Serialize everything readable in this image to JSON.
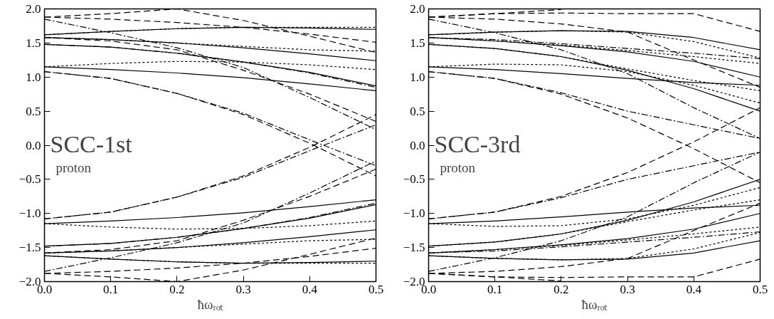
{
  "chart_data": [
    {
      "type": "line",
      "xlabel": "ħωᵣₒₜ",
      "annotations": [
        "SCC-1st",
        "proton"
      ],
      "xlim": [
        0,
        0.5
      ],
      "ylim": [
        -2,
        2
      ],
      "grid": false,
      "color": "#000000",
      "xticks": [
        {
          "value": 0,
          "label": "0.0"
        },
        {
          "value": 0.1,
          "label": "0.1"
        },
        {
          "value": 0.2,
          "label": "0.2"
        },
        {
          "value": 0.3,
          "label": "0.3"
        },
        {
          "value": 0.4,
          "label": "0.4"
        },
        {
          "value": 0.5,
          "label": "0.5"
        }
      ],
      "yticks": [
        {
          "value": -2,
          "label": "−2.0"
        },
        {
          "value": -1.5,
          "label": "−1.5"
        },
        {
          "value": -1,
          "label": "−1.0"
        },
        {
          "value": -0.5,
          "label": "−0.5"
        },
        {
          "value": 0,
          "label": "0.0"
        },
        {
          "value": 0.5,
          "label": "0.5"
        },
        {
          "value": 1,
          "label": "1.0"
        },
        {
          "value": 1.5,
          "label": "1.5"
        },
        {
          "value": 2,
          "label": "2.0"
        }
      ],
      "x": [
        0,
        0.1,
        0.2,
        0.3,
        0.4,
        0.5
      ],
      "series": [
        {
          "line_style": "solid",
          "values": [
            1.62,
            1.67,
            1.71,
            1.73,
            1.72,
            1.7
          ]
        },
        {
          "line_style": "dotted",
          "values": [
            1.62,
            1.67,
            1.71,
            1.73,
            1.73,
            1.73
          ]
        },
        {
          "line_style": "dashed",
          "values": [
            1.88,
            1.93,
            2.0,
            1.83,
            1.6,
            1.36
          ]
        },
        {
          "line_style": "dashed",
          "values": [
            1.88,
            1.85,
            1.8,
            1.73,
            1.63,
            1.51
          ]
        },
        {
          "line_style": "dashdot",
          "values": [
            1.85,
            1.65,
            1.43,
            1.14,
            0.7,
            0.23
          ]
        },
        {
          "line_style": "dashed",
          "values": [
            1.58,
            1.53,
            1.4,
            1.1,
            0.75,
            0.35
          ]
        },
        {
          "line_style": "solid",
          "values": [
            1.58,
            1.55,
            1.5,
            1.43,
            1.34,
            1.24
          ]
        },
        {
          "line_style": "dotted",
          "values": [
            1.58,
            1.55,
            1.5,
            1.45,
            1.4,
            1.38
          ]
        },
        {
          "line_style": "solid",
          "values": [
            1.48,
            1.44,
            1.35,
            1.22,
            1.07,
            0.87
          ]
        },
        {
          "line_style": "dashdot",
          "values": [
            1.48,
            1.44,
            1.35,
            1.22,
            1.06,
            0.85
          ]
        },
        {
          "line_style": "dotted",
          "values": [
            1.15,
            1.2,
            1.23,
            1.22,
            1.18,
            1.11
          ]
        },
        {
          "line_style": "solid",
          "values": [
            1.15,
            1.11,
            1.06,
            0.99,
            0.9,
            0.8
          ]
        },
        {
          "line_style": "dashed",
          "values": [
            1.08,
            0.98,
            0.76,
            0.45,
            0.03,
            -0.45
          ]
        },
        {
          "line_style": "dashdot",
          "values": [
            1.08,
            0.98,
            0.76,
            0.47,
            0.08,
            -0.3
          ]
        },
        {
          "line_style": "solid",
          "values": [
            -1.62,
            -1.67,
            -1.71,
            -1.73,
            -1.72,
            -1.7
          ]
        },
        {
          "line_style": "dotted",
          "values": [
            -1.62,
            -1.67,
            -1.71,
            -1.73,
            -1.73,
            -1.73
          ]
        },
        {
          "line_style": "dashed",
          "values": [
            -1.88,
            -1.93,
            -2.0,
            -1.83,
            -1.6,
            -1.36
          ]
        },
        {
          "line_style": "dashed",
          "values": [
            -1.88,
            -1.85,
            -1.8,
            -1.73,
            -1.63,
            -1.51
          ]
        },
        {
          "line_style": "dashdot",
          "values": [
            -1.85,
            -1.65,
            -1.43,
            -1.14,
            -0.7,
            -0.23
          ]
        },
        {
          "line_style": "dashed",
          "values": [
            -1.58,
            -1.53,
            -1.4,
            -1.1,
            -0.75,
            -0.35
          ]
        },
        {
          "line_style": "solid",
          "values": [
            -1.58,
            -1.55,
            -1.5,
            -1.43,
            -1.34,
            -1.24
          ]
        },
        {
          "line_style": "dotted",
          "values": [
            -1.58,
            -1.55,
            -1.5,
            -1.45,
            -1.4,
            -1.38
          ]
        },
        {
          "line_style": "solid",
          "values": [
            -1.48,
            -1.44,
            -1.35,
            -1.22,
            -1.07,
            -0.87
          ]
        },
        {
          "line_style": "dashdot",
          "values": [
            -1.48,
            -1.44,
            -1.35,
            -1.22,
            -1.06,
            -0.85
          ]
        },
        {
          "line_style": "dotted",
          "values": [
            -1.15,
            -1.2,
            -1.23,
            -1.22,
            -1.18,
            -1.11
          ]
        },
        {
          "line_style": "solid",
          "values": [
            -1.15,
            -1.11,
            -1.06,
            -0.99,
            -0.9,
            -0.8
          ]
        },
        {
          "line_style": "dashed",
          "values": [
            -1.08,
            -0.98,
            -0.76,
            -0.45,
            -0.03,
            0.45
          ]
        },
        {
          "line_style": "dashdot",
          "values": [
            -1.08,
            -0.98,
            -0.76,
            -0.47,
            -0.08,
            0.3
          ]
        }
      ]
    },
    {
      "type": "line",
      "xlabel": "ħωᵣₒₜ",
      "annotations": [
        "SCC-3rd",
        "proton"
      ],
      "xlim": [
        0,
        0.5
      ],
      "ylim": [
        -2,
        2
      ],
      "grid": false,
      "color": "#000000",
      "xticks": [
        {
          "value": 0,
          "label": "0.0"
        },
        {
          "value": 0.1,
          "label": "0.1"
        },
        {
          "value": 0.2,
          "label": "0.2"
        },
        {
          "value": 0.3,
          "label": "0.3"
        },
        {
          "value": 0.4,
          "label": "0.4"
        },
        {
          "value": 0.5,
          "label": "0.5"
        }
      ],
      "yticks": [
        {
          "value": -2,
          "label": "−2.0"
        },
        {
          "value": -1.5,
          "label": "−1.5"
        },
        {
          "value": -1,
          "label": "−1.0"
        },
        {
          "value": -0.5,
          "label": "−0.5"
        },
        {
          "value": 0,
          "label": "0.0"
        },
        {
          "value": 0.5,
          "label": "0.5"
        },
        {
          "value": 1,
          "label": "1.0"
        },
        {
          "value": 1.5,
          "label": "1.5"
        },
        {
          "value": 2,
          "label": "2.0"
        }
      ],
      "x": [
        0,
        0.1,
        0.2,
        0.3,
        0.4,
        0.5
      ],
      "series": [
        {
          "line_style": "solid",
          "values": [
            1.62,
            1.66,
            1.68,
            1.67,
            1.58,
            1.4
          ]
        },
        {
          "line_style": "dotted",
          "values": [
            1.62,
            1.66,
            1.68,
            1.66,
            1.52,
            1.28
          ]
        },
        {
          "line_style": "dashed",
          "values": [
            1.88,
            1.93,
            1.99,
            null,
            null,
            null
          ]
        },
        {
          "line_style": "dashed",
          "values": [
            1.88,
            1.93,
            1.94,
            1.93,
            1.93,
            1.67
          ]
        },
        {
          "line_style": "dashed",
          "values": [
            1.88,
            1.85,
            1.78,
            1.66,
            1.25,
            0.85
          ]
        },
        {
          "line_style": "dashdot",
          "values": [
            1.85,
            1.65,
            1.4,
            1.05,
            0.55,
            0.1
          ]
        },
        {
          "line_style": "dashdot",
          "values": [
            1.58,
            1.55,
            1.49,
            1.42,
            1.35,
            1.27
          ]
        },
        {
          "line_style": "solid",
          "values": [
            1.58,
            1.53,
            1.46,
            1.37,
            1.23,
            1.0
          ]
        },
        {
          "line_style": "dotted",
          "values": [
            1.58,
            1.53,
            1.47,
            1.39,
            1.3,
            1.2
          ]
        },
        {
          "line_style": "solid",
          "values": [
            1.48,
            1.42,
            1.3,
            1.1,
            0.83,
            0.5
          ]
        },
        {
          "line_style": "dotted",
          "values": [
            1.48,
            1.42,
            1.3,
            1.12,
            0.95,
            0.8
          ]
        },
        {
          "line_style": "dotted",
          "values": [
            1.15,
            1.19,
            1.18,
            1.08,
            0.88,
            0.62
          ]
        },
        {
          "line_style": "solid",
          "values": [
            1.15,
            1.11,
            1.05,
            0.98,
            0.92,
            0.88
          ]
        },
        {
          "line_style": "dashed",
          "values": [
            1.08,
            0.98,
            0.75,
            0.4,
            -0.05,
            -0.55
          ]
        },
        {
          "line_style": "dashdot",
          "values": [
            1.08,
            0.98,
            0.77,
            0.5,
            0.3,
            0.1
          ]
        },
        {
          "line_style": "solid",
          "values": [
            -1.62,
            -1.66,
            -1.68,
            -1.67,
            -1.58,
            -1.4
          ]
        },
        {
          "line_style": "dotted",
          "values": [
            -1.62,
            -1.66,
            -1.68,
            -1.66,
            -1.52,
            -1.28
          ]
        },
        {
          "line_style": "dashed",
          "values": [
            -1.88,
            -1.93,
            -1.99,
            null,
            null,
            null
          ]
        },
        {
          "line_style": "dashed",
          "values": [
            -1.88,
            -1.93,
            -1.94,
            -1.93,
            -1.93,
            -1.67
          ]
        },
        {
          "line_style": "dashed",
          "values": [
            -1.88,
            -1.85,
            -1.78,
            -1.66,
            -1.25,
            -0.85
          ]
        },
        {
          "line_style": "dashdot",
          "values": [
            -1.85,
            -1.65,
            -1.4,
            -1.05,
            -0.55,
            -0.1
          ]
        },
        {
          "line_style": "dashdot",
          "values": [
            -1.58,
            -1.55,
            -1.49,
            -1.42,
            -1.35,
            -1.27
          ]
        },
        {
          "line_style": "solid",
          "values": [
            -1.58,
            -1.53,
            -1.46,
            -1.37,
            -1.23,
            -1.0
          ]
        },
        {
          "line_style": "dotted",
          "values": [
            -1.58,
            -1.53,
            -1.47,
            -1.39,
            -1.3,
            -1.2
          ]
        },
        {
          "line_style": "solid",
          "values": [
            -1.48,
            -1.42,
            -1.3,
            -1.1,
            -0.83,
            -0.5
          ]
        },
        {
          "line_style": "dotted",
          "values": [
            -1.48,
            -1.42,
            -1.3,
            -1.12,
            -0.95,
            -0.8
          ]
        },
        {
          "line_style": "dotted",
          "values": [
            -1.15,
            -1.19,
            -1.18,
            -1.08,
            -0.88,
            -0.62
          ]
        },
        {
          "line_style": "solid",
          "values": [
            -1.15,
            -1.11,
            -1.05,
            -0.98,
            -0.92,
            -0.88
          ]
        },
        {
          "line_style": "dashed",
          "values": [
            -1.08,
            -0.98,
            -0.75,
            -0.4,
            0.05,
            0.55
          ]
        },
        {
          "line_style": "dashdot",
          "values": [
            -1.08,
            -0.98,
            -0.77,
            -0.5,
            -0.3,
            -0.1
          ]
        }
      ]
    }
  ]
}
